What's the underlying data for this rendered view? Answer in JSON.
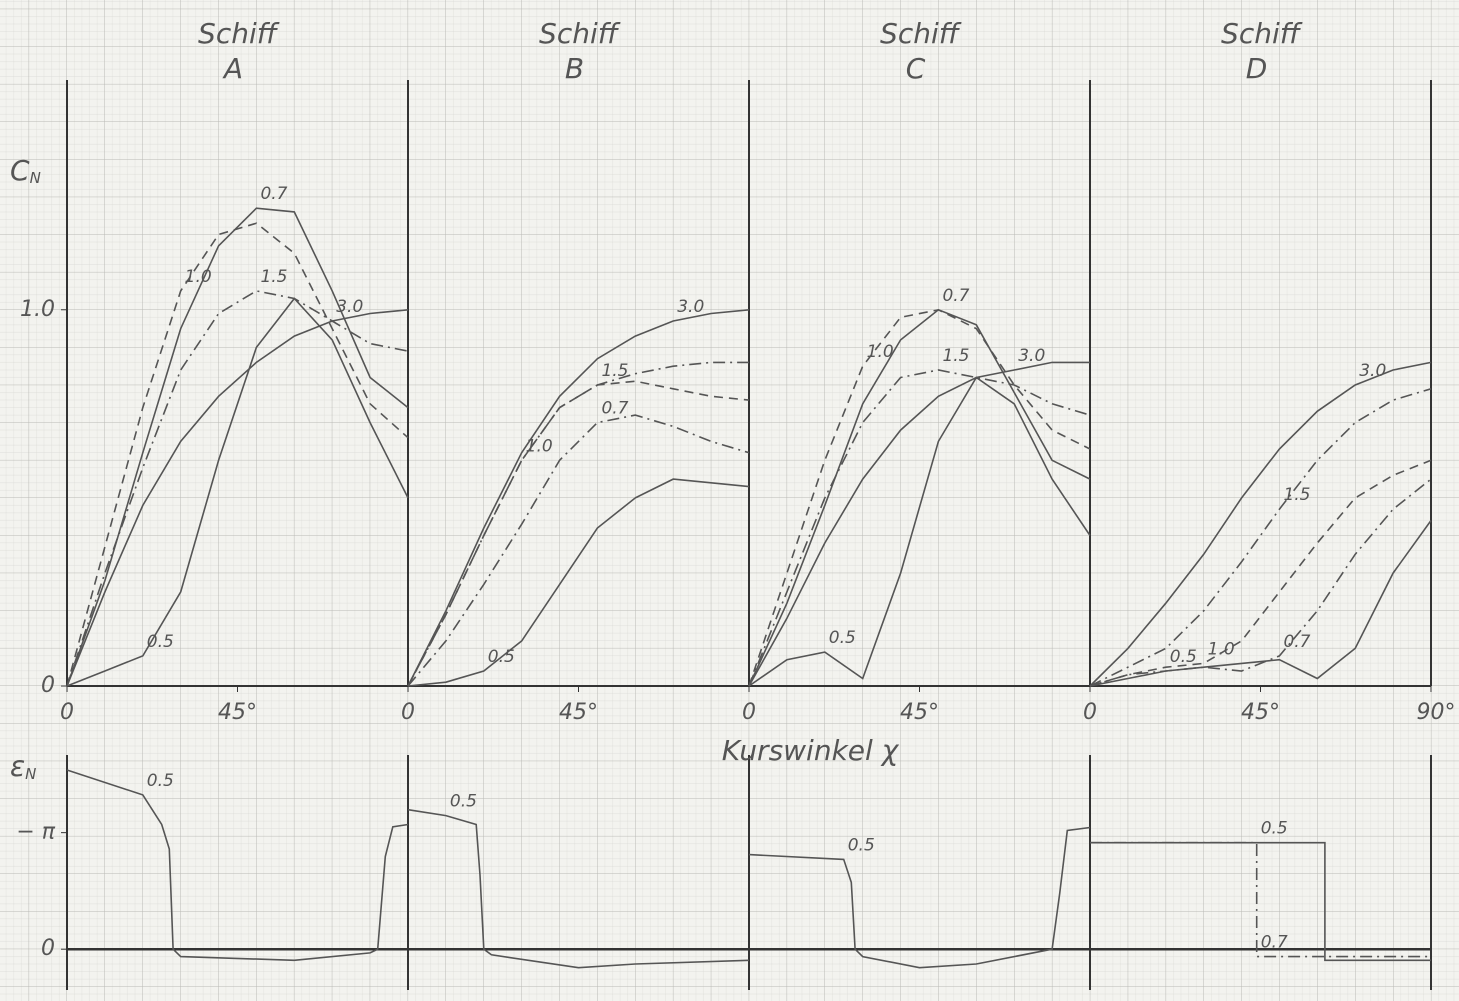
{
  "chart_data": [
    {
      "type": "line",
      "title": "Schiff",
      "subtitle": "A",
      "ylabel": {
        "text": "C",
        "sub": "N"
      },
      "xlabel": "Kurswinkel χ",
      "xlim": [
        0,
        90
      ],
      "ylim": [
        0,
        1.6
      ],
      "xticks": [
        0,
        {
          "value": 45,
          "label": "45°"
        }
      ],
      "yticks": [
        0,
        {
          "value": 1,
          "label": "1.0"
        }
      ],
      "x": [
        0,
        10,
        20,
        30,
        40,
        50,
        60,
        70,
        80,
        90
      ],
      "series": [
        {
          "name": "3.0",
          "dash": "solid",
          "color": "#555555",
          "values": [
            0,
            0.25,
            0.48,
            0.65,
            0.77,
            0.86,
            0.93,
            0.97,
            0.99,
            1.0
          ]
        },
        {
          "name": "1.5",
          "dash": "dashdot",
          "color": "#555555",
          "values": [
            0,
            0.3,
            0.58,
            0.84,
            0.99,
            1.05,
            1.03,
            0.97,
            0.91,
            0.89
          ]
        },
        {
          "name": "1.0",
          "dash": "dashed",
          "color": "#555555",
          "values": [
            0,
            0.37,
            0.74,
            1.05,
            1.2,
            1.23,
            1.15,
            0.95,
            0.75,
            0.66
          ]
        },
        {
          "name": "0.7",
          "dash": "solid",
          "color": "#555555",
          "values": [
            0,
            0.28,
            0.62,
            0.95,
            1.17,
            1.27,
            1.26,
            1.05,
            0.82,
            0.74
          ]
        },
        {
          "name": "0.5",
          "dash": "solid",
          "color": "#555555",
          "values": [
            0,
            0.04,
            0.08,
            0.25,
            0.6,
            0.9,
            1.03,
            0.92,
            0.7,
            0.5
          ]
        }
      ]
    },
    {
      "type": "line",
      "title": "Schiff",
      "subtitle": "B",
      "xlim": [
        0,
        90
      ],
      "ylim": [
        0,
        1.6
      ],
      "xticks": [
        0,
        {
          "value": 45,
          "label": "45°"
        }
      ],
      "x": [
        0,
        10,
        20,
        30,
        40,
        50,
        60,
        70,
        80,
        90
      ],
      "series": [
        {
          "name": "3.0",
          "dash": "solid",
          "color": "#555555",
          "values": [
            0,
            0.2,
            0.42,
            0.62,
            0.77,
            0.87,
            0.93,
            0.97,
            0.99,
            1.0
          ]
        },
        {
          "name": "1.5",
          "dash": "dashdot",
          "color": "#555555",
          "values": [
            0,
            0.19,
            0.4,
            0.6,
            0.74,
            0.8,
            0.83,
            0.85,
            0.86,
            0.86
          ]
        },
        {
          "name": "1.0",
          "dash": "dashed",
          "color": "#555555",
          "values": [
            0,
            0.19,
            0.4,
            0.6,
            0.74,
            0.8,
            0.81,
            0.79,
            0.77,
            0.76
          ]
        },
        {
          "name": "0.7",
          "dash": "dashdot",
          "color": "#555555",
          "values": [
            0,
            0.12,
            0.27,
            0.43,
            0.6,
            0.7,
            0.72,
            0.69,
            0.65,
            0.62
          ]
        },
        {
          "name": "0.5",
          "dash": "solid",
          "color": "#555555",
          "values": [
            0,
            0.01,
            0.04,
            0.12,
            0.27,
            0.42,
            0.5,
            0.55,
            0.54,
            0.53
          ]
        }
      ]
    },
    {
      "type": "line",
      "title": "Schiff",
      "subtitle": "C",
      "xlim": [
        0,
        90
      ],
      "ylim": [
        0,
        1.6
      ],
      "xticks": [
        0,
        {
          "value": 45,
          "label": "45°"
        }
      ],
      "x": [
        0,
        10,
        20,
        30,
        40,
        50,
        60,
        70,
        80,
        90
      ],
      "series": [
        {
          "name": "3.0",
          "dash": "solid",
          "color": "#555555",
          "values": [
            0,
            0.18,
            0.38,
            0.55,
            0.68,
            0.77,
            0.82,
            0.84,
            0.86,
            0.86
          ]
        },
        {
          "name": "1.5",
          "dash": "dashdot",
          "color": "#555555",
          "values": [
            0,
            0.25,
            0.5,
            0.7,
            0.82,
            0.84,
            0.82,
            0.8,
            0.75,
            0.72
          ]
        },
        {
          "name": "1.0",
          "dash": "dashed",
          "color": "#555555",
          "values": [
            0,
            0.3,
            0.6,
            0.85,
            0.98,
            1.0,
            0.95,
            0.8,
            0.68,
            0.63
          ]
        },
        {
          "name": "0.7",
          "dash": "solid",
          "color": "#555555",
          "values": [
            0,
            0.22,
            0.48,
            0.75,
            0.92,
            1.0,
            0.96,
            0.78,
            0.6,
            0.55
          ]
        },
        {
          "name": "0.5",
          "dash": "solid",
          "color": "#555555",
          "values": [
            0,
            0.07,
            0.09,
            0.02,
            0.3,
            0.65,
            0.82,
            0.75,
            0.55,
            0.4
          ]
        }
      ]
    },
    {
      "type": "line",
      "title": "Schiff",
      "subtitle": "D",
      "xlim": [
        0,
        90
      ],
      "ylim": [
        0,
        1.6
      ],
      "xticks": [
        0,
        {
          "value": 45,
          "label": "45°"
        },
        {
          "value": 90,
          "label": "90°"
        }
      ],
      "x": [
        0,
        10,
        20,
        30,
        40,
        50,
        60,
        70,
        80,
        90
      ],
      "series": [
        {
          "name": "3.0",
          "dash": "solid",
          "color": "#555555",
          "values": [
            0,
            0.1,
            0.22,
            0.35,
            0.5,
            0.63,
            0.73,
            0.8,
            0.84,
            0.86
          ]
        },
        {
          "name": "1.5",
          "dash": "dashdot",
          "color": "#555555",
          "values": [
            0,
            0.05,
            0.1,
            0.2,
            0.33,
            0.47,
            0.6,
            0.7,
            0.76,
            0.79
          ]
        },
        {
          "name": "1.0",
          "dash": "dashed",
          "color": "#555555",
          "values": [
            0,
            0.03,
            0.05,
            0.06,
            0.12,
            0.25,
            0.38,
            0.5,
            0.56,
            0.6
          ]
        },
        {
          "name": "0.7",
          "dash": "dashdot",
          "color": "#555555",
          "values": [
            0,
            0.03,
            0.04,
            0.05,
            0.04,
            0.08,
            0.2,
            0.35,
            0.47,
            0.55
          ]
        },
        {
          "name": "0.5",
          "dash": "solid",
          "color": "#555555",
          "values": [
            0,
            0.02,
            0.04,
            0.05,
            0.06,
            0.07,
            0.02,
            0.1,
            0.3,
            0.44
          ]
        }
      ]
    },
    {
      "type": "line",
      "ylabel": {
        "text": "ε",
        "sub": "N"
      },
      "xlim": [
        0,
        90
      ],
      "ylim": [
        1.1,
        -5.1
      ],
      "yticks": [
        {
          "value": -3.14159,
          "label": "− π"
        },
        0
      ],
      "x": [
        0,
        20,
        25,
        27,
        28,
        30,
        60,
        80,
        82,
        84,
        86,
        90
      ],
      "series": [
        {
          "name": "0.5",
          "dash": "solid",
          "color": "#555555",
          "values": [
            -4.83,
            -4.16,
            -3.36,
            -2.7,
            0,
            0.2,
            0.3,
            0.1,
            0,
            -2.5,
            -3.3,
            -3.36
          ]
        }
      ]
    },
    {
      "type": "line",
      "xlim": [
        0,
        90
      ],
      "ylim": [
        1.1,
        -5.1
      ],
      "x": [
        0,
        10,
        18,
        19,
        20,
        22,
        45,
        60,
        90
      ],
      "series": [
        {
          "name": "0.5",
          "dash": "solid",
          "color": "#555555",
          "values": [
            -3.76,
            -3.6,
            -3.36,
            -2.0,
            0,
            0.15,
            0.5,
            0.4,
            0.3
          ]
        }
      ]
    },
    {
      "type": "line",
      "xlim": [
        0,
        90
      ],
      "ylim": [
        1.1,
        -5.1
      ],
      "x": [
        0,
        25,
        27,
        28,
        30,
        45,
        60,
        80,
        82,
        84,
        90
      ],
      "series": [
        {
          "name": "0.5",
          "dash": "solid",
          "color": "#555555",
          "values": [
            -2.55,
            -2.42,
            -1.8,
            0,
            0.2,
            0.5,
            0.4,
            0,
            -1.5,
            -3.2,
            -3.28
          ]
        }
      ]
    },
    {
      "type": "line",
      "xlim": [
        0,
        90
      ],
      "ylim": [
        1.1,
        -5.1
      ],
      "x": [
        0,
        44,
        44,
        62,
        62,
        90
      ],
      "series": [
        {
          "name": "0.5",
          "dash": "solid",
          "color": "#555555",
          "values": [
            -2.87,
            -2.87,
            -2.87,
            -2.87,
            0.3,
            0.3
          ]
        },
        {
          "name": "0.7",
          "dash": "dashdot",
          "color": "#555555",
          "values": [
            -2.87,
            -2.87,
            0.2,
            0.2,
            0.2,
            0.2
          ]
        }
      ]
    }
  ]
}
